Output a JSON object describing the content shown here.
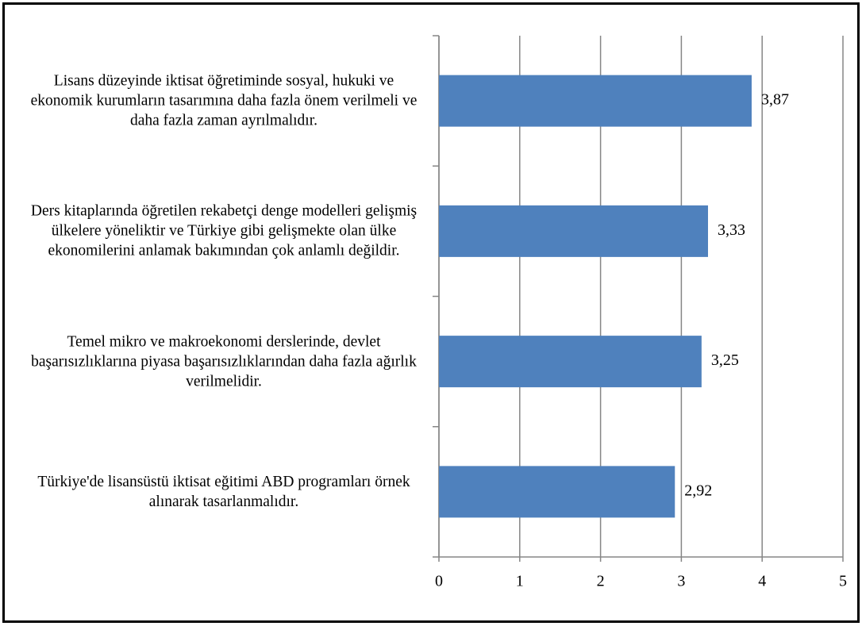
{
  "chart_data": {
    "type": "barh",
    "categories": [
      "Lisans düzeyinde iktisat öğretiminde sosyal, hukuki ve ekonomik kurumların tasarımına daha fazla önem verilmeli ve daha fazla zaman ayrılmalıdır.",
      "Ders kitaplarında öğretilen rekabetçi denge modelleri gelişmiş ülkelere yöneliktir ve Türkiye gibi gelişmekte olan ülke ekonomilerini anlamak bakımından çok anlamlı değildir.",
      "Temel mikro ve makroekonomi derslerinde, devlet başarısızlıklarına piyasa başarısızlıklarından daha fazla ağırlık verilmelidir.",
      "Türkiye'de lisansüstü iktisat eğitimi ABD programları örnek alınarak tasarlanmalıdır."
    ],
    "values": [
      3.87,
      3.33,
      3.25,
      2.92
    ],
    "value_labels": [
      "3,87",
      "3,33",
      "3,25",
      "2,92"
    ],
    "color": "#4f81bd",
    "xlim": [
      0,
      5
    ],
    "xticks": [
      0,
      1,
      2,
      3,
      4,
      5
    ],
    "grid": true
  }
}
